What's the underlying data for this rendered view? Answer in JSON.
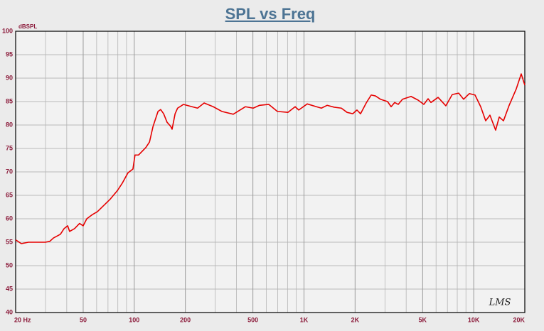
{
  "chart_data": {
    "type": "line",
    "title": "SPL vs Freq",
    "ylabel": "dBSPL",
    "watermark": "LMS",
    "x": [
      20,
      21.6,
      23.8,
      26.2,
      30,
      31.8,
      33.4,
      36.7,
      38.6,
      40.5,
      41.6,
      44.5,
      47.6,
      50,
      52.5,
      56.7,
      60.6,
      65.5,
      72.2,
      79.5,
      85,
      91.8,
      98.2,
      101,
      106,
      117,
      123,
      129,
      138,
      143,
      149,
      156,
      164,
      167,
      174,
      180,
      195,
      219,
      236,
      258,
      292,
      328,
      383,
      451,
      502,
      547,
      620,
      697,
      805,
      887,
      931,
      1045,
      1184,
      1266,
      1368,
      1507,
      1660,
      1793,
      1937,
      2052,
      2154,
      2326,
      2489,
      2637,
      2821,
      3107,
      3260,
      3423,
      3591,
      3805,
      4272,
      4705,
      5083,
      5385,
      5597,
      6166,
      6851,
      7474,
      8155,
      8723,
      9421,
      10180,
      10995,
      11766,
      12464,
      13463,
      14135,
      14977,
      16176,
      17812,
      19054,
      20000
    ],
    "values": [
      55.5,
      54.7,
      55.0,
      55.0,
      55.0,
      55.2,
      55.9,
      56.7,
      57.9,
      58.5,
      57.3,
      57.9,
      59.0,
      58.5,
      60.0,
      60.9,
      61.5,
      62.7,
      64.2,
      66.0,
      67.6,
      69.8,
      70.6,
      73.6,
      73.6,
      75.2,
      76.4,
      79.7,
      82.9,
      83.3,
      82.4,
      80.6,
      79.7,
      79.1,
      82.4,
      83.6,
      84.4,
      83.9,
      83.6,
      84.7,
      83.9,
      82.9,
      82.3,
      83.9,
      83.6,
      84.2,
      84.4,
      82.9,
      82.7,
      83.9,
      83.2,
      84.5,
      83.9,
      83.6,
      84.2,
      83.8,
      83.6,
      82.7,
      82.4,
      83.2,
      82.4,
      84.7,
      86.4,
      86.2,
      85.5,
      85.0,
      83.9,
      84.8,
      84.4,
      85.5,
      86.1,
      85.3,
      84.4,
      85.6,
      84.8,
      85.9,
      84.1,
      86.5,
      86.8,
      85.5,
      86.7,
      86.4,
      83.9,
      80.9,
      82.1,
      78.9,
      81.7,
      80.9,
      84.2,
      87.7,
      90.9,
      88.5
    ],
    "color": "#e60000",
    "log_x": true,
    "grid": true,
    "xlim": [
      20,
      20000
    ],
    "ylim": [
      40,
      100
    ],
    "xticks": [
      {
        "value": 20,
        "label": "20 Hz"
      },
      50,
      100,
      200,
      500,
      {
        "value": 1000,
        "label": "1K"
      },
      {
        "value": 2000,
        "label": "2K"
      },
      {
        "value": 5000,
        "label": "5K"
      },
      {
        "value": 10000,
        "label": "10K"
      },
      {
        "value": 20000,
        "label": "20K"
      }
    ],
    "x_minor_ticks": [
      30,
      40,
      60,
      70,
      80,
      90,
      300,
      400,
      600,
      700,
      800,
      900,
      3000,
      4000,
      6000,
      7000,
      8000,
      9000
    ],
    "yticks": [
      40,
      45,
      50,
      55,
      60,
      65,
      70,
      75,
      80,
      85,
      90,
      95,
      100
    ]
  }
}
